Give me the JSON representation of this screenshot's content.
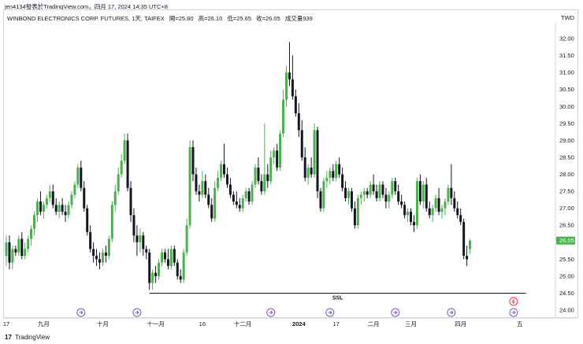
{
  "caption": "jen4134發表於TradingView.com，四月 17, 2024 14:35 UTC+8",
  "legend": {
    "symbol": "WINBOND ELECTRONICS CORP. FUTURES, 1天, TAIFEX",
    "open": "開=25.80",
    "high": "高=26.10",
    "low": "低=25.65",
    "close": "收=26.05",
    "volume": "成交量939"
  },
  "currency": "TWD",
  "footer": {
    "logo": "17",
    "text": "TradingView"
  },
  "colors": {
    "up": "#4caf50",
    "down": "#131722",
    "price_label": "#4caf50",
    "event_icon": "#7e57c2",
    "alert_icon": "#f23645"
  },
  "chart_data": {
    "type": "candlestick",
    "title": "WINBOND ELECTRONICS CORP. FUTURES, 1天, TAIFEX",
    "ylim": [
      23.8,
      32.4
    ],
    "y_ticks": [
      "32.00",
      "31.50",
      "31.00",
      "30.50",
      "30.00",
      "29.50",
      "29.00",
      "28.50",
      "28.00",
      "27.50",
      "27.00",
      "26.50",
      "26.00",
      "25.50",
      "25.00",
      "24.50",
      "24.00"
    ],
    "x_ticks": [
      "17",
      "九月",
      "十月",
      "十一月",
      "16",
      "十二月",
      "2024",
      "17",
      "二月",
      "三月",
      "四月",
      "五"
    ],
    "x_tick_index": [
      0,
      12,
      31,
      48,
      63,
      76,
      94,
      106,
      118,
      130,
      146,
      165
    ],
    "last_price": "26.05",
    "annotation": {
      "label": "SSL",
      "price": 24.5,
      "from_index": 46,
      "to_index": 167
    },
    "event_icon_index": [
      24,
      42,
      85,
      104,
      125,
      143,
      163
    ],
    "alert_icon_index": 163,
    "candles": [
      [
        25.6,
        26.2,
        25.3,
        26.0
      ],
      [
        26.0,
        26.2,
        25.2,
        25.4
      ],
      [
        25.4,
        25.9,
        25.2,
        25.8
      ],
      [
        25.8,
        25.9,
        25.6,
        25.7
      ],
      [
        25.7,
        26.2,
        25.6,
        26.1
      ],
      [
        26.1,
        26.3,
        25.5,
        25.6
      ],
      [
        25.6,
        26.0,
        25.5,
        25.8
      ],
      [
        25.8,
        26.2,
        25.7,
        26.1
      ],
      [
        26.1,
        26.5,
        25.9,
        26.4
      ],
      [
        26.4,
        26.9,
        26.2,
        26.8
      ],
      [
        26.8,
        27.3,
        26.6,
        27.2
      ],
      [
        27.2,
        27.5,
        26.8,
        26.9
      ],
      [
        26.9,
        27.2,
        26.7,
        27.1
      ],
      [
        27.1,
        27.4,
        27.0,
        27.3
      ],
      [
        27.3,
        27.7,
        27.2,
        27.5
      ],
      [
        27.5,
        27.7,
        27.0,
        27.1
      ],
      [
        27.1,
        27.3,
        26.8,
        26.9
      ],
      [
        26.9,
        27.2,
        26.7,
        27.1
      ],
      [
        27.1,
        27.3,
        26.8,
        26.9
      ],
      [
        26.9,
        27.1,
        26.6,
        26.8
      ],
      [
        26.8,
        27.2,
        26.7,
        27.1
      ],
      [
        27.1,
        27.5,
        27.0,
        27.4
      ],
      [
        27.4,
        27.8,
        27.3,
        27.7
      ],
      [
        27.7,
        28.3,
        27.6,
        28.2
      ],
      [
        28.2,
        28.4,
        27.5,
        27.6
      ],
      [
        27.6,
        27.8,
        26.9,
        27.0
      ],
      [
        27.0,
        27.1,
        26.2,
        26.3
      ],
      [
        26.3,
        26.5,
        25.7,
        25.8
      ],
      [
        25.8,
        26.0,
        25.4,
        25.6
      ],
      [
        25.6,
        25.8,
        25.3,
        25.5
      ],
      [
        25.5,
        25.7,
        25.2,
        25.4
      ],
      [
        25.4,
        25.8,
        25.3,
        25.7
      ],
      [
        25.7,
        25.9,
        25.4,
        25.6
      ],
      [
        25.6,
        26.2,
        25.5,
        26.1
      ],
      [
        26.1,
        27.2,
        26.0,
        27.1
      ],
      [
        27.1,
        27.7,
        26.9,
        27.5
      ],
      [
        27.5,
        28.2,
        27.4,
        28.0
      ],
      [
        28.0,
        28.6,
        27.9,
        28.4
      ],
      [
        28.4,
        29.2,
        28.3,
        29.0
      ],
      [
        29.0,
        29.2,
        27.5,
        27.6
      ],
      [
        27.6,
        27.8,
        26.6,
        26.8
      ],
      [
        26.8,
        27.0,
        26.0,
        26.2
      ],
      [
        26.2,
        26.5,
        25.6,
        26.0
      ],
      [
        26.0,
        26.4,
        25.7,
        26.2
      ],
      [
        26.2,
        26.3,
        25.6,
        25.8
      ],
      [
        25.8,
        25.9,
        25.5,
        25.7
      ],
      [
        25.7,
        25.8,
        24.6,
        24.8
      ],
      [
        24.8,
        25.2,
        24.6,
        25.1
      ],
      [
        25.1,
        25.3,
        24.8,
        25.0
      ],
      [
        25.0,
        25.5,
        24.9,
        25.4
      ],
      [
        25.4,
        25.8,
        25.3,
        25.7
      ],
      [
        25.7,
        25.8,
        25.4,
        25.5
      ],
      [
        25.5,
        25.8,
        25.2,
        25.3
      ],
      [
        25.3,
        25.9,
        25.2,
        25.8
      ],
      [
        25.8,
        25.9,
        25.3,
        25.4
      ],
      [
        25.4,
        25.5,
        24.9,
        25.0
      ],
      [
        25.0,
        25.2,
        24.8,
        24.9
      ],
      [
        24.9,
        25.8,
        24.8,
        25.7
      ],
      [
        25.7,
        26.7,
        25.6,
        26.5
      ],
      [
        26.5,
        29.0,
        26.4,
        28.8
      ],
      [
        28.8,
        29.0,
        27.8,
        28.0
      ],
      [
        28.0,
        28.2,
        27.4,
        27.5
      ],
      [
        27.5,
        27.7,
        27.2,
        27.4
      ],
      [
        27.4,
        28.1,
        27.3,
        27.8
      ],
      [
        27.8,
        28.0,
        27.3,
        27.4
      ],
      [
        27.4,
        27.6,
        27.0,
        27.1
      ],
      [
        27.1,
        27.3,
        26.6,
        26.7
      ],
      [
        26.7,
        27.8,
        26.6,
        27.6
      ],
      [
        27.6,
        28.1,
        27.5,
        27.9
      ],
      [
        27.9,
        28.4,
        27.8,
        28.3
      ],
      [
        28.3,
        28.9,
        27.9,
        28.0
      ],
      [
        28.0,
        28.2,
        27.6,
        27.7
      ],
      [
        27.7,
        27.9,
        27.3,
        27.4
      ],
      [
        27.4,
        27.5,
        27.1,
        27.2
      ],
      [
        27.2,
        27.5,
        27.0,
        27.1
      ],
      [
        27.1,
        27.3,
        26.9,
        27.0
      ],
      [
        27.0,
        27.4,
        26.9,
        27.3
      ],
      [
        27.3,
        27.6,
        27.2,
        27.5
      ],
      [
        27.5,
        27.6,
        27.1,
        27.2
      ],
      [
        27.2,
        27.8,
        27.1,
        27.7
      ],
      [
        27.7,
        28.3,
        27.6,
        28.2
      ],
      [
        28.2,
        28.5,
        27.7,
        27.8
      ],
      [
        27.8,
        28.0,
        27.4,
        27.5
      ],
      [
        27.5,
        29.5,
        27.4,
        28.0
      ],
      [
        28.0,
        28.3,
        27.6,
        27.8
      ],
      [
        27.8,
        28.7,
        27.7,
        28.5
      ],
      [
        28.5,
        28.8,
        28.3,
        28.7
      ],
      [
        28.7,
        28.9,
        28.1,
        28.2
      ],
      [
        28.2,
        29.3,
        28.1,
        29.2
      ],
      [
        29.2,
        30.5,
        29.1,
        30.2
      ],
      [
        30.2,
        31.2,
        30.0,
        31.0
      ],
      [
        31.0,
        31.9,
        30.6,
        30.8
      ],
      [
        30.8,
        31.5,
        30.2,
        30.3
      ],
      [
        30.3,
        30.5,
        29.7,
        29.8
      ],
      [
        29.8,
        30.1,
        29.1,
        29.3
      ],
      [
        29.3,
        29.6,
        28.4,
        28.5
      ],
      [
        28.5,
        28.8,
        27.8,
        27.9
      ],
      [
        27.9,
        28.3,
        27.7,
        28.2
      ],
      [
        28.2,
        28.5,
        27.9,
        28.0
      ],
      [
        28.0,
        29.5,
        27.9,
        29.3
      ],
      [
        29.3,
        29.4,
        27.3,
        27.5
      ],
      [
        27.5,
        27.6,
        26.9,
        27.0
      ],
      [
        27.0,
        27.9,
        26.9,
        27.8
      ],
      [
        27.8,
        28.1,
        27.6,
        27.9
      ],
      [
        27.9,
        28.2,
        27.7,
        28.1
      ],
      [
        28.1,
        28.3,
        27.8,
        27.9
      ],
      [
        27.9,
        28.4,
        27.8,
        28.3
      ],
      [
        28.3,
        28.5,
        27.9,
        28.0
      ],
      [
        28.0,
        28.2,
        27.5,
        27.6
      ],
      [
        27.6,
        27.8,
        27.2,
        27.3
      ],
      [
        27.3,
        27.6,
        27.1,
        27.5
      ],
      [
        27.5,
        27.6,
        26.9,
        27.0
      ],
      [
        27.0,
        27.2,
        26.4,
        26.5
      ],
      [
        26.5,
        27.4,
        26.4,
        27.3
      ],
      [
        27.3,
        27.5,
        27.1,
        27.4
      ],
      [
        27.4,
        27.6,
        27.2,
        27.5
      ],
      [
        27.5,
        27.6,
        27.3,
        27.4
      ],
      [
        27.4,
        27.8,
        27.3,
        27.7
      ],
      [
        27.7,
        28.0,
        27.4,
        27.5
      ],
      [
        27.5,
        27.7,
        27.2,
        27.3
      ],
      [
        27.3,
        27.8,
        27.2,
        27.7
      ],
      [
        27.7,
        27.8,
        27.3,
        27.4
      ],
      [
        27.4,
        27.6,
        27.0,
        27.2
      ],
      [
        27.2,
        27.5,
        27.0,
        27.4
      ],
      [
        27.4,
        27.9,
        27.3,
        27.8
      ],
      [
        27.8,
        27.9,
        27.4,
        27.5
      ],
      [
        27.5,
        27.7,
        27.1,
        27.2
      ],
      [
        27.2,
        27.4,
        27.0,
        27.1
      ],
      [
        27.1,
        27.2,
        26.7,
        26.8
      ],
      [
        26.8,
        27.0,
        26.6,
        26.9
      ],
      [
        26.9,
        27.0,
        26.5,
        26.6
      ],
      [
        26.6,
        26.8,
        26.3,
        26.5
      ],
      [
        26.5,
        27.9,
        26.4,
        27.8
      ],
      [
        27.8,
        28.0,
        27.1,
        27.2
      ],
      [
        27.2,
        27.8,
        27.0,
        27.7
      ],
      [
        27.7,
        27.9,
        26.9,
        27.0
      ],
      [
        27.0,
        27.2,
        26.7,
        26.8
      ],
      [
        26.8,
        27.1,
        26.6,
        27.0
      ],
      [
        27.0,
        27.4,
        26.9,
        27.3
      ],
      [
        27.3,
        27.6,
        26.8,
        26.9
      ],
      [
        26.9,
        27.1,
        26.7,
        27.0
      ],
      [
        27.0,
        27.3,
        26.8,
        27.2
      ],
      [
        27.2,
        27.7,
        27.1,
        27.6
      ],
      [
        27.6,
        28.3,
        27.1,
        27.3
      ],
      [
        27.3,
        27.5,
        26.9,
        27.0
      ],
      [
        27.0,
        27.2,
        26.7,
        26.8
      ],
      [
        26.8,
        27.0,
        26.5,
        26.6
      ],
      [
        26.6,
        26.7,
        25.5,
        25.6
      ],
      [
        25.6,
        25.9,
        25.3,
        25.5
      ],
      [
        25.8,
        26.1,
        25.65,
        26.05
      ]
    ]
  }
}
